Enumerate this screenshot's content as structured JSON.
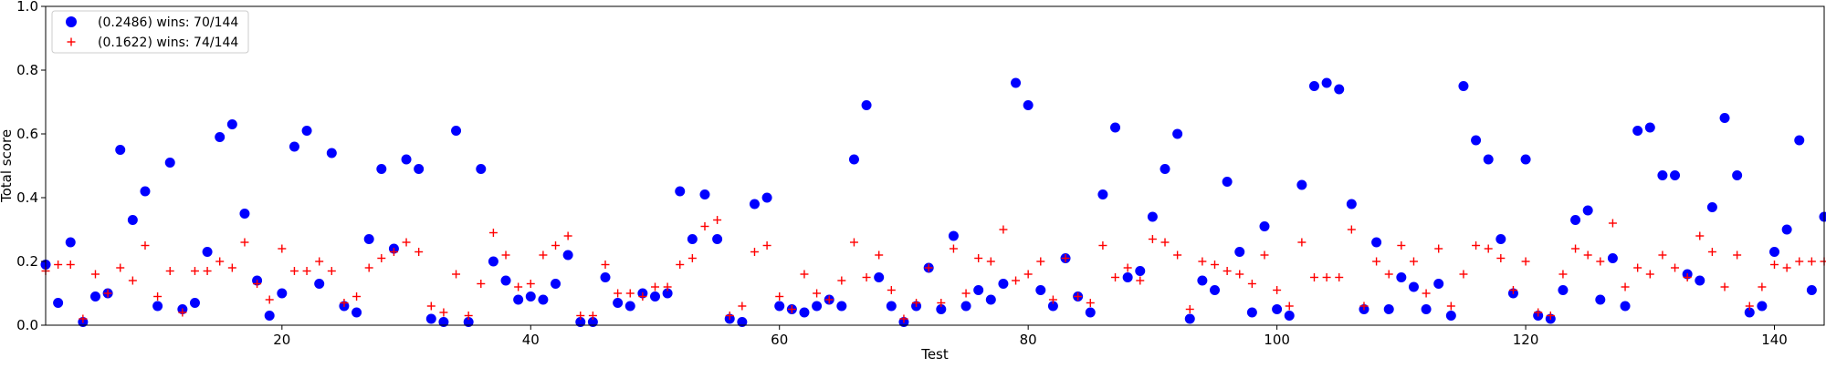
{
  "chart_data": {
    "type": "scatter",
    "xlabel": "Test",
    "ylabel": "Total score",
    "xlim": [
      1,
      144
    ],
    "ylim": [
      0,
      1.0
    ],
    "x_ticks": [
      20,
      40,
      60,
      80,
      100,
      120,
      140
    ],
    "y_ticks": [
      0.0,
      0.2,
      0.4,
      0.6,
      0.8,
      1.0
    ],
    "grid": false,
    "legend_position": "top-left",
    "series": [
      {
        "name": "(0.2486) wins: 70/144",
        "marker": "circle",
        "color": "#0000ff",
        "values": [
          0.19,
          0.07,
          0.26,
          0.01,
          0.09,
          0.1,
          0.55,
          0.33,
          0.42,
          0.06,
          0.51,
          0.05,
          0.07,
          0.23,
          0.59,
          0.63,
          0.35,
          0.14,
          0.03,
          0.1,
          0.56,
          0.61,
          0.13,
          0.54,
          0.06,
          0.04,
          0.27,
          0.49,
          0.24,
          0.52,
          0.49,
          0.02,
          0.01,
          0.61,
          0.01,
          0.49,
          0.2,
          0.14,
          0.08,
          0.09,
          0.08,
          0.13,
          0.22,
          0.01,
          0.01,
          0.15,
          0.07,
          0.06,
          0.1,
          0.09,
          0.1,
          0.42,
          0.27,
          0.41,
          0.27,
          0.02,
          0.01,
          0.38,
          0.4,
          0.06,
          0.05,
          0.04,
          0.06,
          0.08,
          0.06,
          0.52,
          0.69,
          0.15,
          0.06,
          0.01,
          0.06,
          0.18,
          0.05,
          0.28,
          0.06,
          0.11,
          0.08,
          0.13,
          0.76,
          0.69,
          0.11,
          0.06,
          0.21,
          0.09,
          0.04,
          0.41,
          0.62,
          0.15,
          0.17,
          0.34,
          0.49,
          0.6,
          0.02,
          0.14,
          0.11,
          0.45,
          0.23,
          0.04,
          0.31,
          0.05,
          0.03,
          0.44,
          0.75,
          0.76,
          0.74,
          0.38,
          0.05,
          0.26,
          0.05,
          0.15,
          0.12,
          0.05,
          0.13,
          0.03,
          0.75,
          0.58,
          0.52,
          0.27,
          0.1,
          0.52,
          0.03,
          0.02,
          0.11,
          0.33,
          0.36,
          0.08,
          0.21,
          0.06,
          0.61,
          0.62,
          0.47,
          0.47,
          0.16,
          0.14,
          0.37,
          0.65,
          0.47,
          0.04,
          0.06,
          0.23,
          0.3,
          0.58,
          0.11,
          0.34
        ]
      },
      {
        "name": "(0.1622) wins: 74/144",
        "marker": "plus",
        "color": "#ff0000",
        "values": [
          0.17,
          0.19,
          0.19,
          0.02,
          0.16,
          0.1,
          0.18,
          0.14,
          0.25,
          0.09,
          0.17,
          0.04,
          0.17,
          0.17,
          0.2,
          0.18,
          0.26,
          0.13,
          0.08,
          0.24,
          0.17,
          0.17,
          0.2,
          0.17,
          0.07,
          0.09,
          0.18,
          0.21,
          0.23,
          0.26,
          0.23,
          0.06,
          0.04,
          0.16,
          0.03,
          0.13,
          0.29,
          0.22,
          0.12,
          0.13,
          0.22,
          0.25,
          0.28,
          0.03,
          0.03,
          0.19,
          0.1,
          0.1,
          0.09,
          0.12,
          0.12,
          0.19,
          0.21,
          0.31,
          0.33,
          0.03,
          0.06,
          0.23,
          0.25,
          0.09,
          0.05,
          0.16,
          0.1,
          0.08,
          0.14,
          0.26,
          0.15,
          0.22,
          0.11,
          0.02,
          0.07,
          0.18,
          0.07,
          0.24,
          0.1,
          0.21,
          0.2,
          0.3,
          0.14,
          0.16,
          0.2,
          0.08,
          0.21,
          0.09,
          0.07,
          0.25,
          0.15,
          0.18,
          0.14,
          0.27,
          0.26,
          0.22,
          0.05,
          0.2,
          0.19,
          0.17,
          0.16,
          0.13,
          0.22,
          0.11,
          0.06,
          0.26,
          0.15,
          0.15,
          0.15,
          0.3,
          0.06,
          0.2,
          0.16,
          0.25,
          0.2,
          0.1,
          0.24,
          0.06,
          0.16,
          0.25,
          0.24,
          0.21,
          0.11,
          0.2,
          0.04,
          0.03,
          0.16,
          0.24,
          0.22,
          0.2,
          0.32,
          0.12,
          0.18,
          0.16,
          0.22,
          0.18,
          0.15,
          0.28,
          0.23,
          0.12,
          0.22,
          0.06,
          0.12,
          0.19,
          0.18,
          0.2,
          0.2,
          0.2
        ]
      }
    ]
  }
}
